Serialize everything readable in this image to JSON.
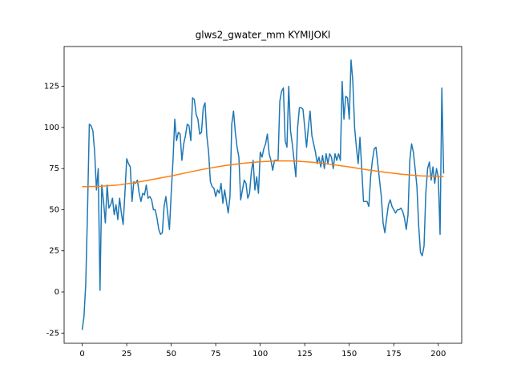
{
  "chart_data": {
    "type": "line",
    "title": "glws2_gwater_mm KYMIJOKI",
    "xlim": [
      -10.15,
      213.15
    ],
    "ylim": [
      -31.2,
      149.2
    ],
    "xticks": [
      0,
      25,
      50,
      75,
      100,
      125,
      150,
      175,
      200
    ],
    "yticks": [
      -25,
      0,
      25,
      50,
      75,
      100,
      125
    ],
    "series": [
      {
        "color": "#1f77b4",
        "x": [
          0,
          1,
          2,
          3,
          4,
          5,
          6,
          7,
          8,
          9,
          10,
          11,
          12,
          13,
          14,
          15,
          16,
          17,
          18,
          19,
          20,
          21,
          22,
          23,
          24,
          25,
          26,
          27,
          28,
          29,
          30,
          31,
          32,
          33,
          34,
          35,
          36,
          37,
          38,
          39,
          40,
          41,
          42,
          43,
          44,
          45,
          46,
          47,
          48,
          49,
          50,
          51,
          52,
          53,
          54,
          55,
          56,
          57,
          58,
          59,
          60,
          61,
          62,
          63,
          64,
          65,
          66,
          67,
          68,
          69,
          70,
          71,
          72,
          73,
          74,
          75,
          76,
          77,
          78,
          79,
          80,
          81,
          82,
          83,
          84,
          85,
          86,
          87,
          88,
          89,
          90,
          91,
          92,
          93,
          94,
          95,
          96,
          97,
          98,
          99,
          100,
          101,
          102,
          103,
          104,
          105,
          106,
          107,
          108,
          109,
          110,
          111,
          112,
          113,
          114,
          115,
          116,
          117,
          118,
          119,
          120,
          121,
          122,
          123,
          124,
          125,
          126,
          127,
          128,
          129,
          130,
          131,
          132,
          133,
          134,
          135,
          136,
          137,
          138,
          139,
          140,
          141,
          142,
          143,
          144,
          145,
          146,
          147,
          148,
          149,
          150,
          151,
          152,
          153,
          154,
          155,
          156,
          157,
          158,
          159,
          160,
          161,
          162,
          163,
          164,
          165,
          166,
          167,
          168,
          169,
          170,
          171,
          172,
          173,
          174,
          175,
          176,
          177,
          178,
          179,
          180,
          181,
          182,
          183,
          184,
          185,
          186,
          187,
          188,
          189,
          190,
          191,
          192,
          193,
          194,
          195,
          196,
          197,
          198,
          199,
          200,
          201,
          202,
          203
        ],
        "values": [
          -23,
          -15,
          5,
          50,
          102,
          101,
          98,
          85,
          62,
          75,
          1,
          65,
          55,
          42,
          65,
          51,
          53,
          57,
          47,
          53,
          44,
          57,
          48,
          41,
          60,
          81,
          78,
          76,
          55,
          67,
          66,
          68,
          60,
          55,
          60,
          59,
          65,
          57,
          58,
          56,
          50,
          50,
          45,
          38,
          35,
          36,
          52,
          58,
          48,
          38,
          60,
          80,
          105,
          92,
          97,
          96,
          80,
          90,
          95,
          102,
          101,
          92,
          118,
          117,
          108,
          105,
          96,
          97,
          112,
          115,
          95,
          85,
          67,
          64,
          63,
          58,
          62,
          60,
          66,
          54,
          62,
          55,
          48,
          58,
          102,
          110,
          97,
          88,
          82,
          56,
          62,
          68,
          66,
          57,
          60,
          73,
          80,
          62,
          70,
          60,
          85,
          82,
          87,
          90,
          96,
          84,
          80,
          74,
          80,
          80,
          80,
          116,
          122,
          124,
          92,
          88,
          125,
          98,
          90,
          80,
          70,
          100,
          112,
          112,
          111,
          100,
          88,
          100,
          110,
          95,
          90,
          85,
          78,
          82,
          76,
          83,
          75,
          84,
          78,
          84,
          82,
          75,
          84,
          80,
          84,
          80,
          128,
          105,
          119,
          118,
          105,
          141,
          128,
          100,
          88,
          78,
          94,
          75,
          55,
          55,
          55,
          52,
          70,
          80,
          87,
          88,
          78,
          68,
          58,
          42,
          36,
          45,
          53,
          56,
          52,
          50,
          48,
          50,
          50,
          51,
          49,
          45,
          38,
          47,
          80,
          90,
          85,
          75,
          64,
          40,
          24,
          22,
          28,
          60,
          75,
          79,
          68,
          76,
          66,
          75,
          70,
          35,
          124,
          72
        ]
      },
      {
        "color": "#ff7f0e",
        "x": [
          0,
          10,
          20,
          30,
          40,
          50,
          60,
          70,
          80,
          90,
          100,
          110,
          120,
          130,
          140,
          150,
          160,
          170,
          180,
          190,
          200,
          203
        ],
        "values": [
          64,
          64.2,
          65,
          66.5,
          68.5,
          70.5,
          72.8,
          75,
          76.8,
          78.2,
          79.2,
          79.7,
          79.6,
          78.8,
          77.5,
          76,
          74.3,
          72.8,
          71.5,
          70.6,
          70.2,
          70.2
        ]
      }
    ]
  }
}
